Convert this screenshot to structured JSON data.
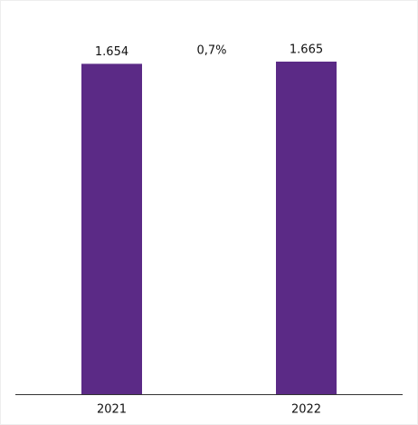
{
  "chart_data": {
    "type": "bar",
    "categories": [
      "2021",
      "2022"
    ],
    "values": [
      1654,
      1665
    ],
    "value_labels": [
      "1.654",
      "1.665"
    ],
    "color": "#5b2a86",
    "annotation": "0,7%"
  }
}
